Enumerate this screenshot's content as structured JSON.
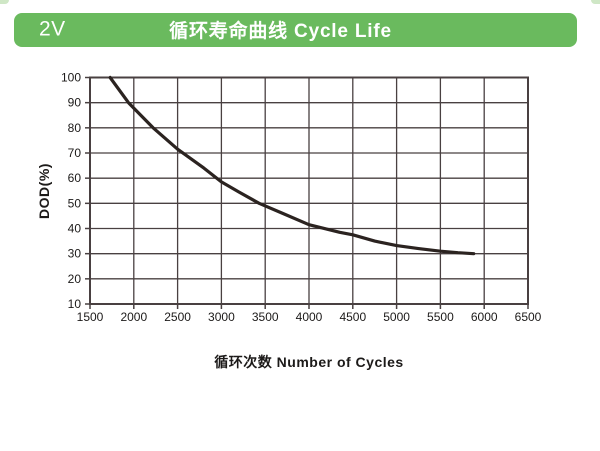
{
  "header": {
    "badge": "2V",
    "title": "循环寿命曲线 Cycle Life",
    "bar_color": "#6aba5e",
    "text_color": "#ffffff"
  },
  "chart_data": {
    "type": "line",
    "title": "循环寿命曲线 Cycle Life",
    "xlabel": "循环次数 Number of Cycles",
    "ylabel": "DOD(%)",
    "xlim": [
      1500,
      6500
    ],
    "ylim": [
      10,
      100
    ],
    "x_ticks": [
      1500,
      2000,
      2500,
      3000,
      3500,
      4000,
      4500,
      5000,
      5500,
      6000,
      6500
    ],
    "y_ticks": [
      10,
      20,
      30,
      40,
      50,
      60,
      70,
      80,
      90,
      100
    ],
    "grid": true,
    "legend": "none",
    "axis_color": "#494041",
    "series": [
      {
        "name": "cycle-life-curve",
        "color": "#2b2320",
        "x": [
          1730,
          1940,
          2220,
          2500,
          2800,
          3000,
          3200,
          3430,
          3700,
          4000,
          4350,
          4500,
          4750,
          5000,
          5250,
          5500,
          5700,
          5880
        ],
        "y": [
          100,
          90,
          80,
          71.5,
          64,
          58.5,
          54.5,
          50,
          46,
          41.5,
          38.5,
          37.5,
          35,
          33.2,
          32,
          31,
          30.4,
          30
        ]
      }
    ]
  }
}
